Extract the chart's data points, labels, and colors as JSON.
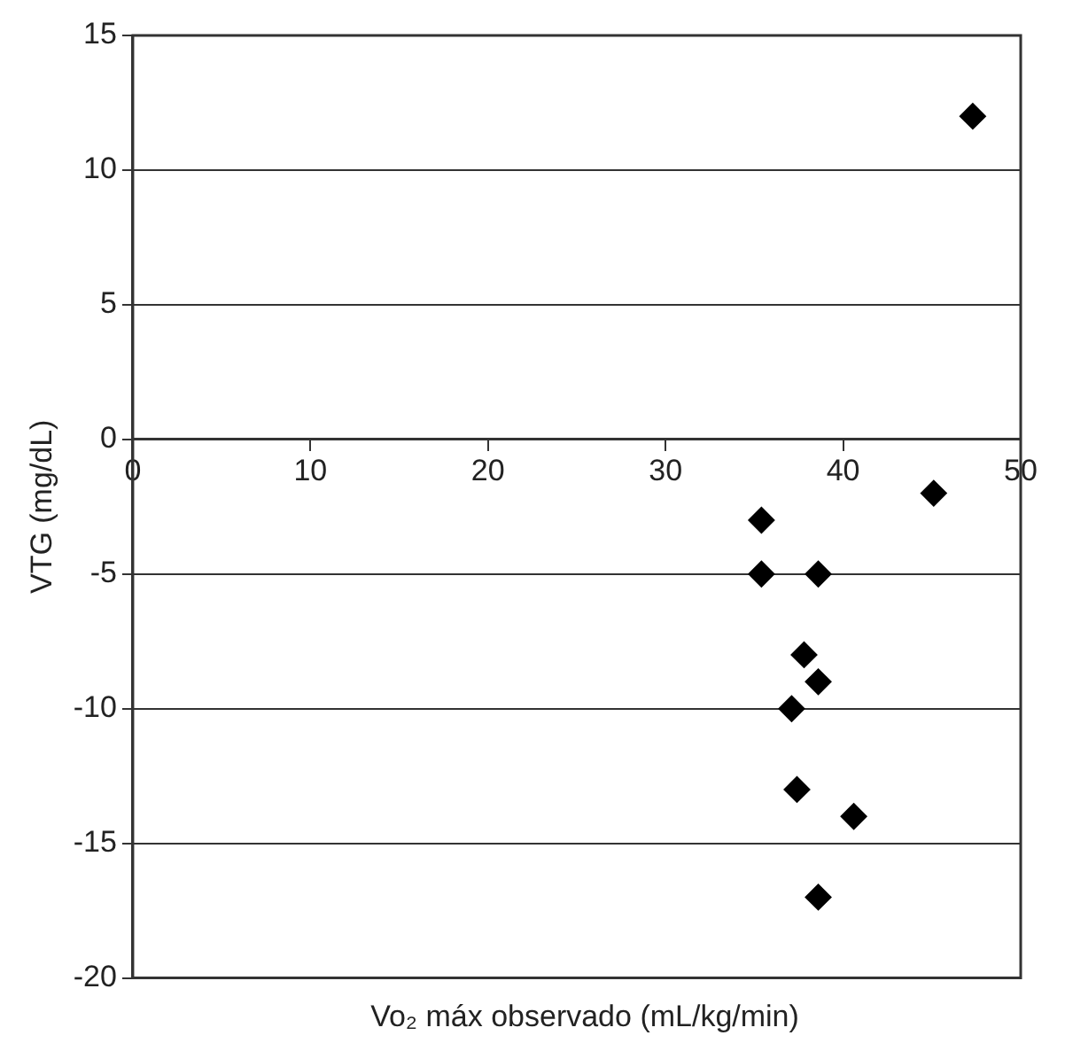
{
  "chart_data": {
    "type": "scatter",
    "xlabel": "Vo₂ máx observado (mL/kg/min)",
    "ylabel": "VTG (mg/dL)",
    "x": [
      35.4,
      35.4,
      38.6,
      37.8,
      38.6,
      37.1,
      37.4,
      40.6,
      38.6,
      45.1,
      47.3
    ],
    "series": [
      {
        "color": "#000000",
        "values": [
          -3,
          -5,
          -5,
          -8,
          -9,
          -10,
          -13,
          -14,
          -17,
          -2,
          12
        ]
      }
    ],
    "xlim": [
      0,
      50
    ],
    "xticks": [
      0,
      10,
      20,
      30,
      40,
      50
    ],
    "ylim": [
      -20,
      15
    ],
    "yticks": [
      -20,
      -15,
      -10,
      -5,
      0,
      5,
      10,
      15
    ],
    "grid": "y",
    "legend": false,
    "marker": "diamond"
  }
}
